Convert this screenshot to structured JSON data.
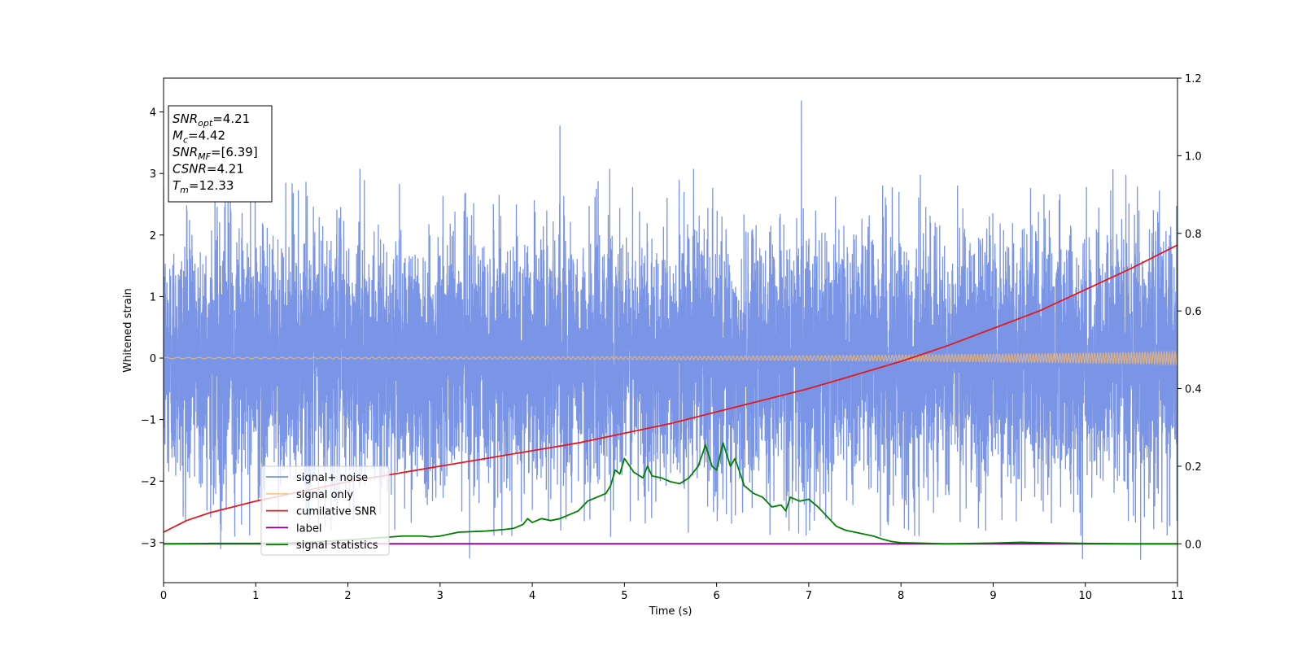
{
  "chart_data": {
    "type": "line",
    "xlabel": "Time (s)",
    "ylabel": "Whitened strain",
    "xlim": [
      0,
      11
    ],
    "ylim_left": [
      -3.65,
      4.55
    ],
    "ylim_right": [
      -0.1,
      1.2
    ],
    "x_ticks": [
      0,
      1,
      2,
      3,
      4,
      5,
      6,
      7,
      8,
      9,
      10,
      11
    ],
    "y_left_ticks": [
      -3,
      -2,
      -1,
      0,
      1,
      2,
      3,
      4
    ],
    "y_left_tick_labels": [
      "−3",
      "−2",
      "−1",
      "0",
      "1",
      "2",
      "3",
      "4"
    ],
    "y_right_ticks": [
      0.0,
      0.2,
      0.4,
      0.6,
      0.8,
      1.0,
      1.2
    ],
    "y_right_tick_labels": [
      "0.0",
      "0.2",
      "0.4",
      "0.6",
      "0.8",
      "1.0",
      "1.2"
    ],
    "grid": false,
    "legend_position": "lower-left",
    "series": [
      {
        "name": "signal+ noise",
        "axis": "left",
        "color": "#7893e6",
        "style": "noise",
        "noise_std": 1.0,
        "peaks": [
          [
            4.3,
            3.77
          ],
          [
            6.92,
            4.18
          ],
          [
            3.32,
            -3.25
          ],
          [
            10.6,
            -3.27
          ],
          [
            9.97,
            -3.26
          ],
          [
            0.62,
            -3.1
          ],
          [
            10.3,
            3.06
          ],
          [
            2.13,
            3.07
          ],
          [
            4.84,
            3.07
          ],
          [
            5.75,
            3.07
          ],
          [
            8.21,
            2.97
          ],
          [
            10.44,
            2.97
          ]
        ]
      },
      {
        "name": "signal only",
        "axis": "left",
        "color": "#f5b86b",
        "style": "chirp",
        "amplitude": [
          [
            0,
            0.01
          ],
          [
            4,
            0.02
          ],
          [
            6,
            0.03
          ],
          [
            8,
            0.05
          ],
          [
            9.5,
            0.07
          ],
          [
            11,
            0.1
          ]
        ]
      },
      {
        "name": "cumilative SNR",
        "axis": "right",
        "color": "#e31a1c",
        "x": [
          0,
          0.25,
          0.5,
          1,
          1.5,
          2,
          2.5,
          3,
          3.5,
          4,
          4.5,
          5,
          5.5,
          6,
          6.5,
          7,
          7.5,
          8,
          8.5,
          9,
          9.5,
          10,
          10.5,
          11
        ],
        "y": [
          0.03,
          0.06,
          0.08,
          0.11,
          0.135,
          0.16,
          0.18,
          0.2,
          0.22,
          0.24,
          0.26,
          0.285,
          0.31,
          0.34,
          0.37,
          0.4,
          0.435,
          0.47,
          0.51,
          0.555,
          0.6,
          0.655,
          0.71,
          0.77
        ]
      },
      {
        "name": "label",
        "axis": "right",
        "color": "#800080",
        "x": [
          0,
          11
        ],
        "y": [
          0,
          0
        ]
      },
      {
        "name": "signal statistics",
        "axis": "right",
        "color": "#008000",
        "x": [
          0,
          0.5,
          1,
          1.5,
          2,
          2.3,
          2.6,
          2.8,
          2.9,
          3.0,
          3.2,
          3.4,
          3.5,
          3.6,
          3.7,
          3.8,
          3.9,
          3.95,
          4.0,
          4.1,
          4.2,
          4.3,
          4.4,
          4.5,
          4.6,
          4.7,
          4.8,
          4.85,
          4.9,
          4.95,
          5.0,
          5.1,
          5.2,
          5.25,
          5.3,
          5.4,
          5.5,
          5.6,
          5.7,
          5.8,
          5.88,
          5.95,
          6.0,
          6.07,
          6.15,
          6.2,
          6.3,
          6.4,
          6.5,
          6.6,
          6.7,
          6.75,
          6.8,
          6.9,
          7.0,
          7.1,
          7.2,
          7.3,
          7.4,
          7.5,
          7.6,
          7.7,
          7.8,
          7.9,
          8.0,
          8.5,
          9.0,
          9.3,
          9.5,
          10.0,
          10.5,
          11.0
        ],
        "y": [
          0.0,
          0.001,
          0.001,
          0.003,
          0.01,
          0.015,
          0.02,
          0.02,
          0.018,
          0.02,
          0.03,
          0.032,
          0.033,
          0.035,
          0.037,
          0.04,
          0.05,
          0.065,
          0.055,
          0.065,
          0.06,
          0.065,
          0.075,
          0.085,
          0.11,
          0.12,
          0.13,
          0.15,
          0.19,
          0.18,
          0.22,
          0.185,
          0.17,
          0.2,
          0.175,
          0.17,
          0.16,
          0.155,
          0.17,
          0.2,
          0.255,
          0.2,
          0.19,
          0.26,
          0.2,
          0.22,
          0.15,
          0.13,
          0.12,
          0.095,
          0.1,
          0.085,
          0.12,
          0.11,
          0.115,
          0.095,
          0.07,
          0.045,
          0.035,
          0.03,
          0.025,
          0.02,
          0.012,
          0.006,
          0.003,
          0.0,
          0.002,
          0.004,
          0.003,
          0.001,
          0.0,
          0.0
        ]
      }
    ]
  },
  "textbox": {
    "lines": [
      {
        "var": "SNR",
        "sub": "opt",
        "value": "=4.21"
      },
      {
        "var": "M",
        "sub": "c",
        "value": "=4.42"
      },
      {
        "var": "SNR",
        "sub": "MF",
        "value": "=[6.39]"
      },
      {
        "var": "CSNR",
        "sub": "",
        "value": "=4.21"
      },
      {
        "var": "T",
        "sub": "m",
        "value": "=12.33"
      }
    ]
  }
}
